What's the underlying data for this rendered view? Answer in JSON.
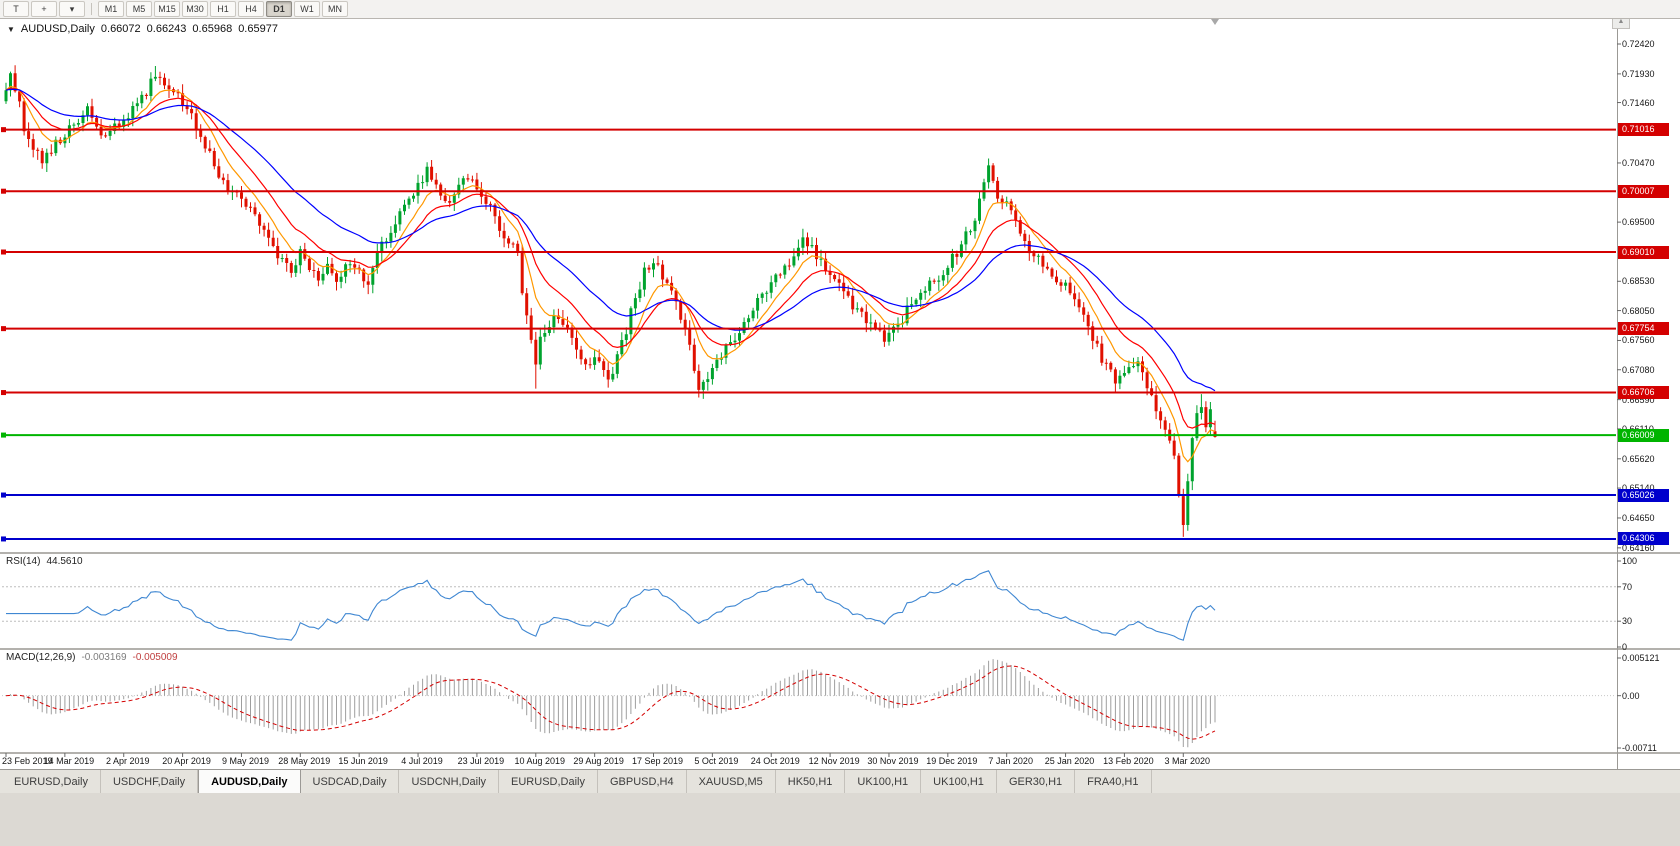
{
  "icons": {
    "expand_triangle": "▼",
    "crosshair": "+",
    "caret_down": "▾",
    "scroll_up": "▲"
  },
  "toolbar": {
    "t_button": "T",
    "timeframes": [
      {
        "label": "M1",
        "active": false
      },
      {
        "label": "M5",
        "active": false
      },
      {
        "label": "M15",
        "active": false
      },
      {
        "label": "M30",
        "active": false
      },
      {
        "label": "H1",
        "active": false
      },
      {
        "label": "H4",
        "active": false
      },
      {
        "label": "D1",
        "active": true
      },
      {
        "label": "W1",
        "active": false
      },
      {
        "label": "MN",
        "active": false
      }
    ]
  },
  "chart": {
    "title_symbol": "AUDUSD,Daily",
    "ohlc": {
      "open": "0.66072",
      "high": "0.66243",
      "low": "0.65968",
      "close": "0.65977"
    }
  },
  "rsi": {
    "label": "RSI(14)",
    "value": "44.5610",
    "y_ticks": [
      "100",
      "70",
      "30",
      "0"
    ],
    "level_lines": [
      70,
      30
    ]
  },
  "macd": {
    "label": "MACD(12,26,9)",
    "value": "-0.003169",
    "signal_value": "-0.005009",
    "y_ticks": [
      "0.005121",
      "0.00",
      "-0.00711"
    ]
  },
  "tabs": [
    {
      "label": "EURUSD,Daily",
      "active": false
    },
    {
      "label": "USDCHF,Daily",
      "active": false
    },
    {
      "label": "AUDUSD,Daily",
      "active": true
    },
    {
      "label": "USDCAD,Daily",
      "active": false
    },
    {
      "label": "USDCNH,Daily",
      "active": false
    },
    {
      "label": "EURUSD,Daily",
      "active": false
    },
    {
      "label": "GBPUSD,H4",
      "active": false
    },
    {
      "label": "XAUUSD,M5",
      "active": false
    },
    {
      "label": "HK50,H1",
      "active": false
    },
    {
      "label": "UK100,H1",
      "active": false
    },
    {
      "label": "UK100,H1",
      "active": false
    },
    {
      "label": "GER30,H1",
      "active": false
    },
    {
      "label": "FRA40,H1",
      "active": false
    }
  ],
  "chart_data": {
    "type": "candlestick",
    "symbol": "AUDUSD",
    "timeframe": "Daily",
    "days": 268,
    "x_labels": [
      "23 Feb 2019",
      "14 Mar 2019",
      "2 Apr 2019",
      "20 Apr 2019",
      "9 May 2019",
      "28 May 2019",
      "15 Jun 2019",
      "4 Jul 2019",
      "23 Jul 2019",
      "10 Aug 2019",
      "29 Aug 2019",
      "17 Sep 2019",
      "5 Oct 2019",
      "24 Oct 2019",
      "12 Nov 2019",
      "30 Nov 2019",
      "19 Dec 2019",
      "7 Jan 2020",
      "25 Jan 2020",
      "13 Feb 2020",
      "3 Mar 2020"
    ],
    "y_ticks": [
      "0.72420",
      "0.71930",
      "0.71460",
      "0.70470",
      "0.69500",
      "0.68530",
      "0.68050",
      "0.67560",
      "0.67080",
      "0.66590",
      "0.66110",
      "0.65620",
      "0.65140",
      "0.64650",
      "0.64160"
    ],
    "y_range": [
      0.6416,
      0.7242
    ],
    "levels": [
      {
        "price": 0.71016,
        "label": "0.71016",
        "color": "#d40000"
      },
      {
        "price": 0.70007,
        "label": "0.70007",
        "color": "#d40000"
      },
      {
        "price": 0.6901,
        "label": "0.69010",
        "color": "#d40000"
      },
      {
        "price": 0.67754,
        "label": "0.67754",
        "color": "#d40000"
      },
      {
        "price": 0.66706,
        "label": "0.66706",
        "color": "#d40000"
      },
      {
        "price": 0.66009,
        "label": "0.66009",
        "color": "#00b400"
      },
      {
        "price": 0.65026,
        "label": "0.65026",
        "color": "#0000cc"
      },
      {
        "price": 0.64306,
        "label": "0.64306",
        "color": "#0000cc"
      }
    ],
    "price_anchors": [
      [
        0,
        0.716
      ],
      [
        1,
        0.7188
      ],
      [
        2,
        0.7172
      ],
      [
        3,
        0.714
      ],
      [
        4,
        0.7098
      ],
      [
        5,
        0.7078
      ],
      [
        6,
        0.7064
      ],
      [
        8,
        0.7052
      ],
      [
        10,
        0.7072
      ],
      [
        13,
        0.7092
      ],
      [
        15,
        0.7108
      ],
      [
        17,
        0.7128
      ],
      [
        18,
        0.7138
      ],
      [
        20,
        0.7108
      ],
      [
        22,
        0.7088
      ],
      [
        24,
        0.7108
      ],
      [
        26,
        0.7122
      ],
      [
        28,
        0.7136
      ],
      [
        30,
        0.7152
      ],
      [
        32,
        0.7178
      ],
      [
        33,
        0.7192
      ],
      [
        35,
        0.7183
      ],
      [
        37,
        0.7168
      ],
      [
        39,
        0.7148
      ],
      [
        41,
        0.7122
      ],
      [
        43,
        0.7092
      ],
      [
        45,
        0.7058
      ],
      [
        47,
        0.703
      ],
      [
        49,
        0.7008
      ],
      [
        52,
        0.6992
      ],
      [
        55,
        0.6958
      ],
      [
        57,
        0.6932
      ],
      [
        59,
        0.6908
      ],
      [
        61,
        0.6888
      ],
      [
        63,
        0.6872
      ],
      [
        65,
        0.6902
      ],
      [
        67,
        0.6874
      ],
      [
        69,
        0.686
      ],
      [
        71,
        0.6882
      ],
      [
        73,
        0.6856
      ],
      [
        75,
        0.6874
      ],
      [
        78,
        0.6868
      ],
      [
        80,
        0.685
      ],
      [
        82,
        0.6892
      ],
      [
        84,
        0.6926
      ],
      [
        86,
        0.6946
      ],
      [
        88,
        0.6972
      ],
      [
        90,
        0.6996
      ],
      [
        93,
        0.7036
      ],
      [
        95,
        0.7004
      ],
      [
        97,
        0.6978
      ],
      [
        99,
        0.7002
      ],
      [
        101,
        0.7026
      ],
      [
        103,
        0.7014
      ],
      [
        104,
        0.7
      ],
      [
        106,
        0.6984
      ],
      [
        108,
        0.6958
      ],
      [
        110,
        0.693
      ],
      [
        112,
        0.6906
      ],
      [
        113,
        0.6898
      ],
      [
        114,
        0.684
      ],
      [
        115,
        0.6798
      ],
      [
        116,
        0.6758
      ],
      [
        117,
        0.6718
      ],
      [
        118,
        0.6754
      ],
      [
        120,
        0.6786
      ],
      [
        122,
        0.6796
      ],
      [
        124,
        0.6772
      ],
      [
        126,
        0.6744
      ],
      [
        128,
        0.6714
      ],
      [
        130,
        0.6732
      ],
      [
        132,
        0.6704
      ],
      [
        133,
        0.6692
      ],
      [
        135,
        0.6728
      ],
      [
        137,
        0.6774
      ],
      [
        139,
        0.6828
      ],
      [
        141,
        0.6868
      ],
      [
        143,
        0.6886
      ],
      [
        145,
        0.6862
      ],
      [
        147,
        0.6832
      ],
      [
        149,
        0.6796
      ],
      [
        151,
        0.6752
      ],
      [
        153,
        0.6678
      ],
      [
        155,
        0.6692
      ],
      [
        156,
        0.6706
      ],
      [
        158,
        0.6728
      ],
      [
        160,
        0.6752
      ],
      [
        162,
        0.6776
      ],
      [
        164,
        0.68
      ],
      [
        166,
        0.6818
      ],
      [
        169,
        0.6848
      ],
      [
        171,
        0.6866
      ],
      [
        173,
        0.6884
      ],
      [
        176,
        0.6926
      ],
      [
        178,
        0.6904
      ],
      [
        180,
        0.6882
      ],
      [
        182,
        0.6862
      ],
      [
        184,
        0.6842
      ],
      [
        186,
        0.6822
      ],
      [
        188,
        0.6806
      ],
      [
        190,
        0.6788
      ],
      [
        192,
        0.6772
      ],
      [
        194,
        0.6756
      ],
      [
        196,
        0.6772
      ],
      [
        198,
        0.6792
      ],
      [
        200,
        0.6822
      ],
      [
        202,
        0.6838
      ],
      [
        204,
        0.6848
      ],
      [
        206,
        0.6862
      ],
      [
        208,
        0.6882
      ],
      [
        210,
        0.6896
      ],
      [
        212,
        0.6928
      ],
      [
        214,
        0.6958
      ],
      [
        216,
        0.701
      ],
      [
        217,
        0.7038
      ],
      [
        219,
        0.6992
      ],
      [
        221,
        0.6986
      ],
      [
        223,
        0.6948
      ],
      [
        225,
        0.6918
      ],
      [
        227,
        0.6894
      ],
      [
        229,
        0.6878
      ],
      [
        231,
        0.6862
      ],
      [
        233,
        0.6852
      ],
      [
        235,
        0.6832
      ],
      [
        237,
        0.6816
      ],
      [
        239,
        0.6782
      ],
      [
        241,
        0.6742
      ],
      [
        243,
        0.6712
      ],
      [
        245,
        0.6692
      ],
      [
        247,
        0.6706
      ],
      [
        249,
        0.6722
      ],
      [
        250,
        0.673
      ],
      [
        252,
        0.6686
      ],
      [
        254,
        0.6642
      ],
      [
        256,
        0.6608
      ],
      [
        258,
        0.6562
      ],
      [
        259,
        0.6506
      ],
      [
        260,
        0.6454
      ],
      [
        261,
        0.6524
      ],
      [
        262,
        0.6592
      ],
      [
        263,
        0.6638
      ],
      [
        264,
        0.6652
      ],
      [
        265,
        0.6612
      ],
      [
        266,
        0.6636
      ],
      [
        267,
        0.6598
      ]
    ],
    "spikes": [
      {
        "day": 2,
        "high": 0.7207
      },
      {
        "day": 33,
        "high": 0.7206
      },
      {
        "day": 80,
        "low": 0.6832
      },
      {
        "day": 93,
        "high": 0.7048
      },
      {
        "day": 117,
        "low": 0.6677
      },
      {
        "day": 133,
        "low": 0.6689
      },
      {
        "day": 153,
        "low": 0.6671
      },
      {
        "day": 176,
        "high": 0.6929
      },
      {
        "day": 217,
        "high": 0.7046
      },
      {
        "day": 260,
        "low": 0.6434
      },
      {
        "day": 264,
        "high": 0.6668
      }
    ],
    "last_candle": {
      "open": 0.66072,
      "high": 0.66243,
      "low": 0.65968,
      "close": 0.65977
    },
    "moving_averages": [
      {
        "period": 8,
        "color": "#ff9800"
      },
      {
        "period": 16,
        "color": "#ff0000"
      },
      {
        "period": 34,
        "color": "#0000ff"
      }
    ],
    "colors": {
      "up": "#00a32e",
      "down": "#e01000",
      "rsi_line": "#3f87d2",
      "macd_hist": "#9e9e9e",
      "macd_signal": "#d40000"
    }
  }
}
